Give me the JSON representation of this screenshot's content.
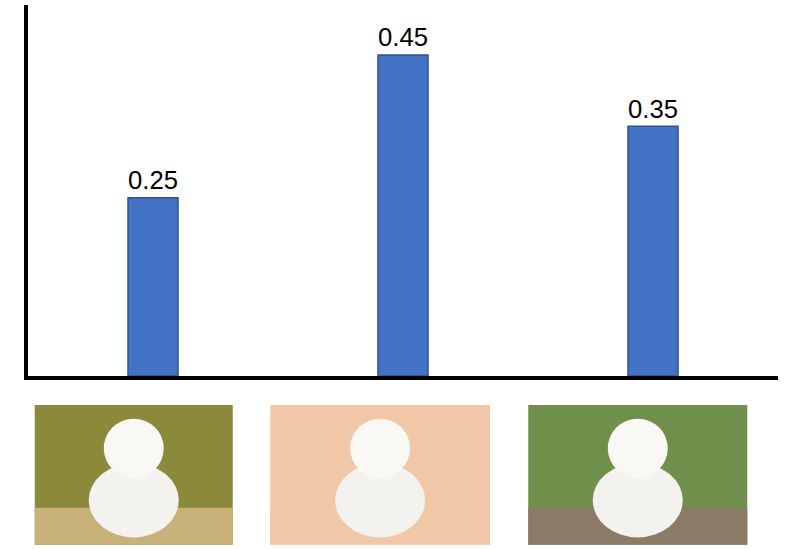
{
  "chart_data": {
    "type": "bar",
    "categories": [
      null,
      null,
      null
    ],
    "values": [
      0.25,
      0.45,
      0.35
    ],
    "color": "#4472c4",
    "ylim": [
      0,
      0.52
    ],
    "data_labels": true,
    "tick_labels": false,
    "grid": false
  }
}
